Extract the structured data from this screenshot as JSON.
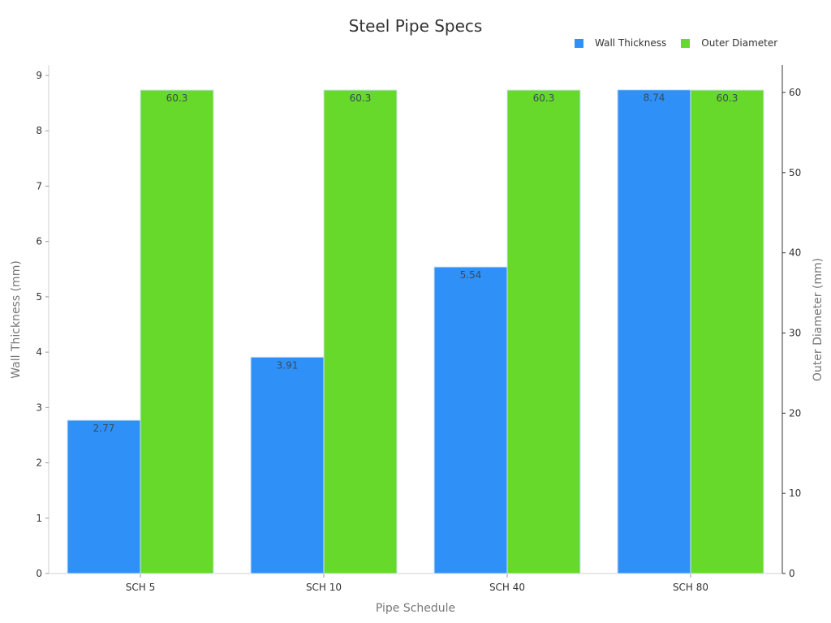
{
  "chart_data": {
    "type": "bar",
    "title": "Steel Pipe Specs",
    "categories": [
      "SCH 5",
      "SCH 10",
      "SCH 40",
      "SCH 80"
    ],
    "series": [
      {
        "name": "Wall Thickness",
        "axis": "left",
        "color": "#2f91f7",
        "values": [
          2.77,
          3.91,
          5.54,
          8.74
        ]
      },
      {
        "name": "Outer Diameter",
        "axis": "right",
        "color": "#66d92b",
        "values": [
          60.3,
          60.3,
          60.3,
          60.3
        ]
      }
    ],
    "xlabel": "Pipe Schedule",
    "ylabel": "Wall Thickness (mm)",
    "ylabel_right": "Outer Diameter (mm)",
    "ylim": [
      0,
      9
    ],
    "ylim_right": [
      0,
      60
    ],
    "yticks": [
      0,
      1,
      2,
      3,
      4,
      5,
      6,
      7,
      8,
      9
    ],
    "yticks_right": [
      0,
      10,
      20,
      30,
      40,
      50,
      60
    ],
    "legend_position": "top-right",
    "grid": false
  },
  "labels": {
    "title": "Steel Pipe Specs",
    "legend": [
      "Wall Thickness",
      "Outer Diameter"
    ],
    "xlabel": "Pipe Schedule",
    "ylabel": "Wall Thickness (mm)",
    "ylabel_right": "Outer Diameter (mm)"
  }
}
